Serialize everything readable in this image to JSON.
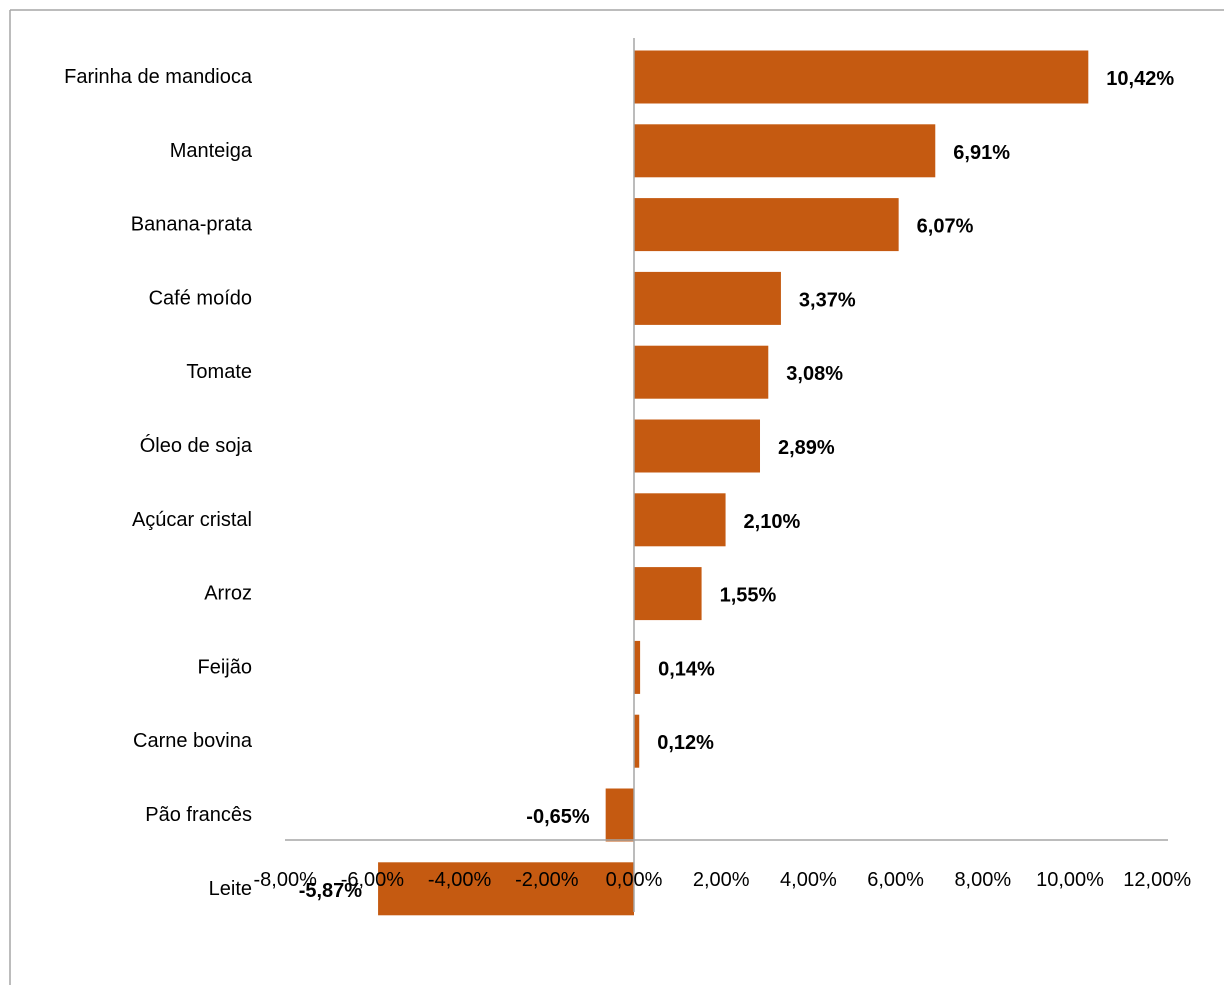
{
  "colors": {
    "bar": "#C55A11",
    "title": "#ED7D31",
    "axis": "#A6A6A6",
    "border": "#A6A6A6"
  },
  "chart_data": {
    "type": "bar",
    "orientation": "horizontal",
    "title": "",
    "xlabel": "",
    "ylabel": "",
    "categories": [
      "Farinha de mandioca",
      "Manteiga",
      "Banana-prata",
      "Café moído",
      "Tomate",
      "Óleo de soja",
      "Açúcar cristal",
      "Arroz",
      "Feijão",
      "Carne bovina",
      "Pão francês",
      "Leite"
    ],
    "values": [
      10.42,
      6.91,
      6.07,
      3.37,
      3.08,
      2.89,
      2.1,
      1.55,
      0.14,
      0.12,
      -0.65,
      -5.87
    ],
    "value_labels": [
      "10,42%",
      "6,91%",
      "6,07%",
      "3,37%",
      "3,08%",
      "2,89%",
      "2,10%",
      "1,55%",
      "0,14%",
      "0,12%",
      "-0,65%",
      "-5,87%"
    ],
    "xlim": [
      -8,
      12
    ],
    "ticks": [
      -8,
      -6,
      -4,
      -2,
      0,
      2,
      4,
      6,
      8,
      10,
      12
    ],
    "tick_labels": [
      "-8,00%",
      "-6,00%",
      "-4,00%",
      "-2,00%",
      "0,00%",
      "2,00%",
      "4,00%",
      "6,00%",
      "8,00%",
      "10,00%",
      "12,00%"
    ],
    "grid": false,
    "legend": "none"
  }
}
